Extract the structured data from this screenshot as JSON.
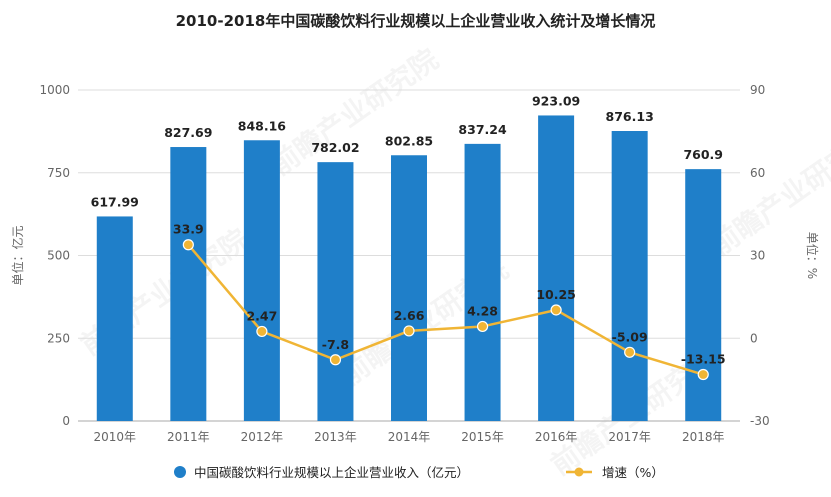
{
  "chart_data": {
    "type": "bar",
    "title": "2010-2018年中国碳酸饮料行业规模以上企业营业收入统计及增长情况",
    "categories": [
      "2010年",
      "2011年",
      "2012年",
      "2013年",
      "2014年",
      "2015年",
      "2016年",
      "2017年",
      "2018年"
    ],
    "series": [
      {
        "name": "中国碳酸饮料行业规模以上企业营业收入（亿元）",
        "type": "bar",
        "axis": "left",
        "values": [
          617.99,
          827.69,
          848.16,
          782.02,
          802.85,
          837.24,
          923.09,
          876.13,
          760.9
        ],
        "labels": [
          "617.99",
          "827.69",
          "848.16",
          "782.02",
          "802.85",
          "837.24",
          "923.09",
          "876.13",
          "760.9"
        ]
      },
      {
        "name": "增速（%）",
        "type": "line",
        "axis": "right",
        "values": [
          null,
          33.9,
          2.47,
          -7.8,
          2.66,
          4.28,
          10.25,
          -5.09,
          -13.15
        ],
        "labels": [
          "",
          "33.9",
          "2.47",
          "-7.8",
          "2.66",
          "4.28",
          "10.25",
          "-5.09",
          "-13.15"
        ]
      }
    ],
    "ylabel": "单位：亿元",
    "ylim": [
      0,
      1000
    ],
    "yticks": [
      "0",
      "250",
      "500",
      "750",
      "1000"
    ],
    "ylabel_right": "单位：%",
    "ylim_right": [
      -30,
      90
    ],
    "yticks_right": [
      "-30",
      "0",
      "30",
      "60",
      "90"
    ],
    "legend_position": "bottom",
    "colors": {
      "bar": "#1f7fc9",
      "line": "#f0b535",
      "text": "#222222",
      "axis": "#666666",
      "grid": "#dddddd"
    }
  },
  "watermark": "前瞻产业研究院"
}
